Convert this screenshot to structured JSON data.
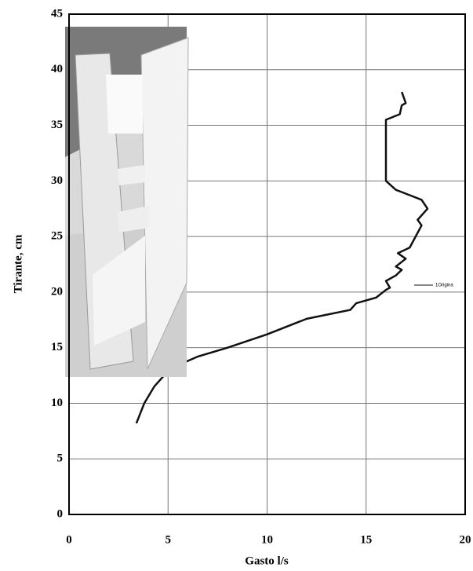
{
  "chart_data": {
    "type": "line",
    "xlabel": "Gasto l/s",
    "ylabel": "Tirante, cm",
    "x": [
      3.4,
      3.8,
      4.3,
      4.8,
      5.6,
      6.5,
      8.0,
      10.0,
      12.0,
      14.2,
      14.5,
      15.5,
      16.0,
      16.2,
      16.0,
      16.5,
      16.8,
      16.5,
      17.0,
      16.6,
      17.2,
      17.5,
      17.8,
      17.6,
      18.1,
      17.8,
      16.5,
      16.0,
      16.0,
      16.0,
      16.0,
      16.7,
      16.8,
      17.0,
      16.8
    ],
    "series": [
      {
        "name": "1Origina",
        "color": "#111111",
        "values": [
          8.2,
          10.0,
          11.5,
          12.5,
          13.5,
          14.2,
          15.0,
          16.2,
          17.6,
          18.4,
          19.0,
          19.5,
          20.2,
          20.4,
          21.0,
          21.5,
          22.0,
          22.3,
          23.0,
          23.5,
          24.0,
          25.0,
          26.0,
          26.5,
          27.5,
          28.3,
          29.2,
          30.0,
          31.0,
          33.0,
          35.5,
          36.0,
          36.8,
          37.0,
          38.0
        ]
      }
    ],
    "xlim": [
      0,
      20
    ],
    "xticks": [
      0,
      5,
      10,
      15,
      20
    ],
    "ylim": [
      0,
      45
    ],
    "yticks": [
      0,
      5,
      10,
      15,
      20,
      25,
      30,
      35,
      40,
      45
    ],
    "grid": true
  }
}
